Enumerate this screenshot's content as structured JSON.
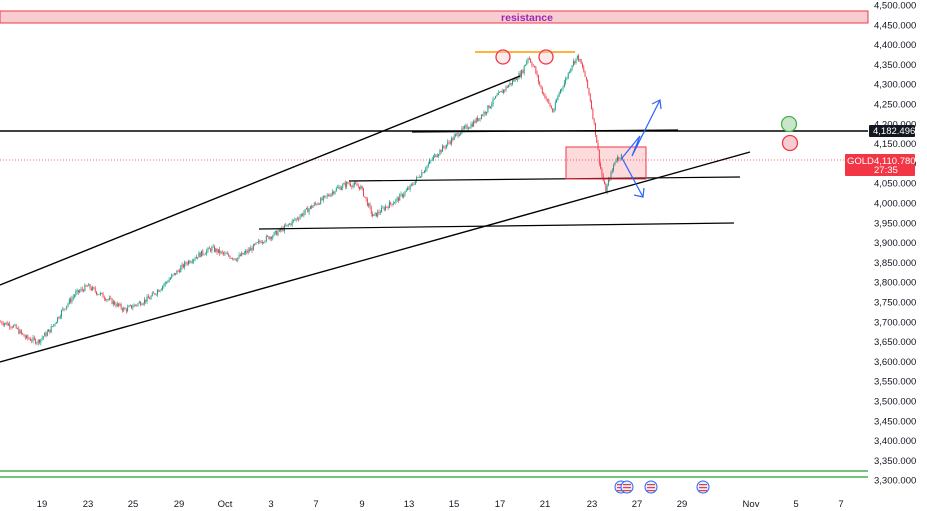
{
  "chart_data": {
    "type": "candlestick",
    "instrument": "GOLD",
    "last_price": "4,110.780",
    "countdown": "27:35",
    "marked_level": "4,182.496",
    "zone_label": "resistance",
    "y_ticks": [
      "4,500.000",
      "4,450.000",
      "4,400.000",
      "4,350.000",
      "4,300.000",
      "4,250.000",
      "4,200.000",
      "4,150.000",
      "4,100.000",
      "4,050.000",
      "4,000.000",
      "3,950.000",
      "3,900.000",
      "3,850.000",
      "3,800.000",
      "3,750.000",
      "3,700.000",
      "3,650.000",
      "3,600.000",
      "3,550.000",
      "3,500.000",
      "3,450.000",
      "3,400.000",
      "3,350.000",
      "3,300.000"
    ],
    "y_range": [
      3300,
      4500
    ],
    "x_ticks": [
      "19",
      "23",
      "25",
      "29",
      "Oct",
      "3",
      "7",
      "9",
      "13",
      "15",
      "17",
      "21",
      "23",
      "27",
      "29",
      "Nov",
      "5",
      "7"
    ],
    "close_path": [
      [
        0,
        3700
      ],
      [
        0.02,
        3690
      ],
      [
        0.04,
        3660
      ],
      [
        0.06,
        3650
      ],
      [
        0.08,
        3680
      ],
      [
        0.1,
        3730
      ],
      [
        0.12,
        3770
      ],
      [
        0.14,
        3790
      ],
      [
        0.16,
        3770
      ],
      [
        0.18,
        3750
      ],
      [
        0.2,
        3730
      ],
      [
        0.22,
        3745
      ],
      [
        0.24,
        3760
      ],
      [
        0.26,
        3790
      ],
      [
        0.28,
        3820
      ],
      [
        0.3,
        3850
      ],
      [
        0.32,
        3870
      ],
      [
        0.34,
        3885
      ],
      [
        0.36,
        3870
      ],
      [
        0.38,
        3860
      ],
      [
        0.4,
        3880
      ],
      [
        0.42,
        3905
      ],
      [
        0.44,
        3920
      ],
      [
        0.46,
        3940
      ],
      [
        0.48,
        3965
      ],
      [
        0.5,
        3990
      ],
      [
        0.52,
        4010
      ],
      [
        0.54,
        4035
      ],
      [
        0.56,
        4050
      ],
      [
        0.58,
        4040
      ],
      [
        0.6,
        3965
      ],
      [
        0.62,
        3990
      ],
      [
        0.64,
        4010
      ],
      [
        0.66,
        4040
      ],
      [
        0.68,
        4080
      ],
      [
        0.7,
        4120
      ],
      [
        0.72,
        4150
      ],
      [
        0.74,
        4180
      ],
      [
        0.76,
        4200
      ],
      [
        0.78,
        4230
      ],
      [
        0.8,
        4270
      ],
      [
        0.82,
        4300
      ],
      [
        0.84,
        4330
      ],
      [
        0.85,
        4370
      ],
      [
        0.86,
        4340
      ],
      [
        0.87,
        4290
      ],
      [
        0.88,
        4260
      ],
      [
        0.89,
        4230
      ],
      [
        0.9,
        4280
      ],
      [
        0.91,
        4310
      ],
      [
        0.92,
        4350
      ],
      [
        0.93,
        4370
      ],
      [
        0.94,
        4330
      ],
      [
        0.95,
        4260
      ],
      [
        0.96,
        4160
      ],
      [
        0.965,
        4100
      ],
      [
        0.97,
        4060
      ],
      [
        0.975,
        4030
      ],
      [
        0.98,
        4060
      ],
      [
        0.985,
        4080
      ],
      [
        0.99,
        4110
      ],
      [
        1.0,
        4120
      ]
    ],
    "candle_count": 480,
    "colors": {
      "up": "#089981",
      "down": "#f23645",
      "zone": "#f23645",
      "support": "#4caf50",
      "arrow": "#2962ff",
      "peaks": "#ff9800"
    }
  }
}
